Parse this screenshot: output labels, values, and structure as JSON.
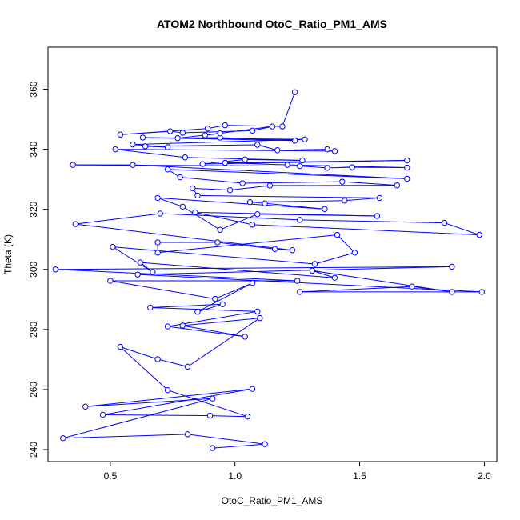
{
  "chart_data": {
    "type": "scatter",
    "title": "ATOM2 Northbound OtoC_Ratio_PM1_AMS",
    "xlabel": "OtoC_Ratio_PM1_AMS",
    "ylabel": "Theta (K)",
    "xlim": [
      0.25,
      2.05
    ],
    "ylim": [
      236,
      374
    ],
    "xticks": [
      "0.5",
      "1.0",
      "1.5",
      "2.0"
    ],
    "xtick_values": [
      0.5,
      1.0,
      1.5,
      2.0
    ],
    "yticks": [
      "240",
      "260",
      "280",
      "300",
      "320",
      "340",
      "360"
    ],
    "ytick_values": [
      240,
      260,
      280,
      300,
      320,
      340,
      360
    ],
    "grid": false,
    "legend": "none",
    "colors": {
      "series": "#0000ff",
      "axis": "#000000"
    },
    "series": [
      {
        "values": [
          [
            0.91,
            240.5
          ],
          [
            1.12,
            241.8
          ],
          [
            0.81,
            245.1
          ],
          [
            0.31,
            243.8
          ],
          [
            0.91,
            257.0
          ],
          [
            0.4,
            254.3
          ],
          [
            1.07,
            260.2
          ],
          [
            0.47,
            251.6
          ],
          [
            0.9,
            251.3
          ],
          [
            1.05,
            251.0
          ],
          [
            0.73,
            259.8
          ],
          [
            0.54,
            274.2
          ],
          [
            0.69,
            270.1
          ],
          [
            0.81,
            267.6
          ],
          [
            1.1,
            283.8
          ],
          [
            0.79,
            281.3
          ],
          [
            1.04,
            277.6
          ],
          [
            0.73,
            281.0
          ],
          [
            1.09,
            286.0
          ],
          [
            0.66,
            287.3
          ],
          [
            0.95,
            288.4
          ],
          [
            0.85,
            285.9
          ],
          [
            1.07,
            295.5
          ],
          [
            0.92,
            290.2
          ],
          [
            0.5,
            296.2
          ],
          [
            1.25,
            296.2
          ],
          [
            0.28,
            300.0
          ],
          [
            1.87,
            300.9
          ],
          [
            0.61,
            298.3
          ],
          [
            1.99,
            292.5
          ],
          [
            1.26,
            292.5
          ],
          [
            1.71,
            294.3
          ],
          [
            1.87,
            292.5
          ],
          [
            1.31,
            299.6
          ],
          [
            1.4,
            297.2
          ],
          [
            0.62,
            302.3
          ],
          [
            0.67,
            299.1
          ],
          [
            0.51,
            307.5
          ],
          [
            1.32,
            301.8
          ],
          [
            1.48,
            305.6
          ],
          [
            1.41,
            311.5
          ],
          [
            0.69,
            305.6
          ],
          [
            0.69,
            309.0
          ],
          [
            0.93,
            309.0
          ],
          [
            1.16,
            306.8
          ],
          [
            1.23,
            306.4
          ],
          [
            0.36,
            315.1
          ],
          [
            0.7,
            318.6
          ],
          [
            1.26,
            316.5
          ],
          [
            1.84,
            315.5
          ],
          [
            1.98,
            311.5
          ],
          [
            1.07,
            314.9
          ],
          [
            0.84,
            319.0
          ],
          [
            1.57,
            317.8
          ],
          [
            1.09,
            318.4
          ],
          [
            0.94,
            313.2
          ],
          [
            0.79,
            320.9
          ],
          [
            0.69,
            323.8
          ],
          [
            1.36,
            320.1
          ],
          [
            1.12,
            322.0
          ],
          [
            1.06,
            322.4
          ],
          [
            1.44,
            322.9
          ],
          [
            1.58,
            323.8
          ],
          [
            0.85,
            324.6
          ],
          [
            0.83,
            327.0
          ],
          [
            0.98,
            326.4
          ],
          [
            1.14,
            327.9
          ],
          [
            1.65,
            328.0
          ],
          [
            1.43,
            329.2
          ],
          [
            1.03,
            328.7
          ],
          [
            0.78,
            330.7
          ],
          [
            0.73,
            333.3
          ],
          [
            1.69,
            330.2
          ],
          [
            0.59,
            334.8
          ],
          [
            0.35,
            334.8
          ],
          [
            1.26,
            334.4
          ],
          [
            1.37,
            333.8
          ],
          [
            1.47,
            334.0
          ],
          [
            1.69,
            333.9
          ],
          [
            1.21,
            334.8
          ],
          [
            0.96,
            335.5
          ],
          [
            1.69,
            336.3
          ],
          [
            0.87,
            335.1
          ],
          [
            1.04,
            336.6
          ],
          [
            1.27,
            336.3
          ],
          [
            0.8,
            337.3
          ],
          [
            0.52,
            340.0
          ],
          [
            1.4,
            339.4
          ],
          [
            1.37,
            340.0
          ],
          [
            1.17,
            339.7
          ],
          [
            1.09,
            341.5
          ],
          [
            0.64,
            341.0
          ],
          [
            0.73,
            340.7
          ],
          [
            0.59,
            341.6
          ],
          [
            1.28,
            343.3
          ],
          [
            0.63,
            343.9
          ],
          [
            1.24,
            342.9
          ],
          [
            0.94,
            343.9
          ],
          [
            0.77,
            343.7
          ],
          [
            0.94,
            345.3
          ],
          [
            0.88,
            344.7
          ],
          [
            1.15,
            347.6
          ],
          [
            1.07,
            346.2
          ],
          [
            0.79,
            345.5
          ],
          [
            0.74,
            346.0
          ],
          [
            0.54,
            344.9
          ],
          [
            0.89,
            346.9
          ],
          [
            0.96,
            348.0
          ],
          [
            1.19,
            347.6
          ],
          [
            1.24,
            359.0
          ]
        ]
      }
    ]
  }
}
